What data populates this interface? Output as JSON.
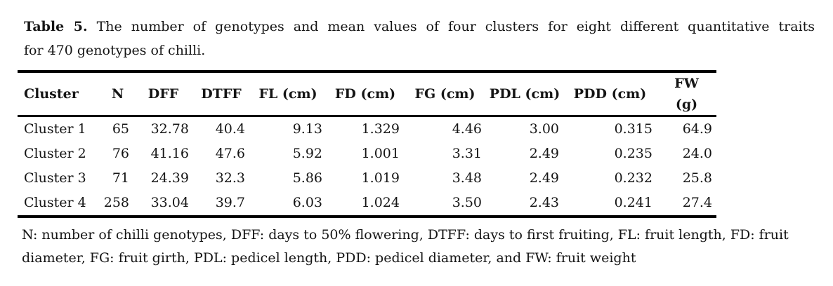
{
  "caption": {
    "label": "Table 5.",
    "line1_rest": "The number of genotypes and mean values of four clusters for eight different quantitative traits",
    "line2": "for 470 genotypes of chilli."
  },
  "table": {
    "headers": [
      "Cluster",
      "N",
      "DFF",
      "DTFF",
      "FL (cm)",
      "FD (cm)",
      "FG (cm)",
      "PDL (cm)",
      "PDD (cm)",
      "FW\n(g)"
    ],
    "rows": [
      [
        "Cluster 1",
        "65",
        "32.78",
        "40.4",
        "9.13",
        "1.329",
        "4.46",
        "3.00",
        "0.315",
        "64.9"
      ],
      [
        "Cluster 2",
        "76",
        "41.16",
        "47.6",
        "5.92",
        "1.001",
        "3.31",
        "2.49",
        "0.235",
        "24.0"
      ],
      [
        "Cluster 3",
        "71",
        "24.39",
        "32.3",
        "5.86",
        "1.019",
        "3.48",
        "2.49",
        "0.232",
        "25.8"
      ],
      [
        "Cluster 4",
        "258",
        "33.04",
        "39.7",
        "6.03",
        "1.024",
        "3.50",
        "2.43",
        "0.241",
        "27.4"
      ]
    ]
  },
  "footnote": {
    "line1": "N: number of chilli genotypes, DFF: days to 50% flowering, DTFF: days to first fruiting, FL: fruit length, FD: fruit",
    "line2": "diameter, FG: fruit girth, PDL: pedicel length, PDD: pedicel diameter, and FW: fruit weight"
  },
  "colors": {
    "text": "#151515",
    "rule": "#000000",
    "background": "#ffffff"
  }
}
